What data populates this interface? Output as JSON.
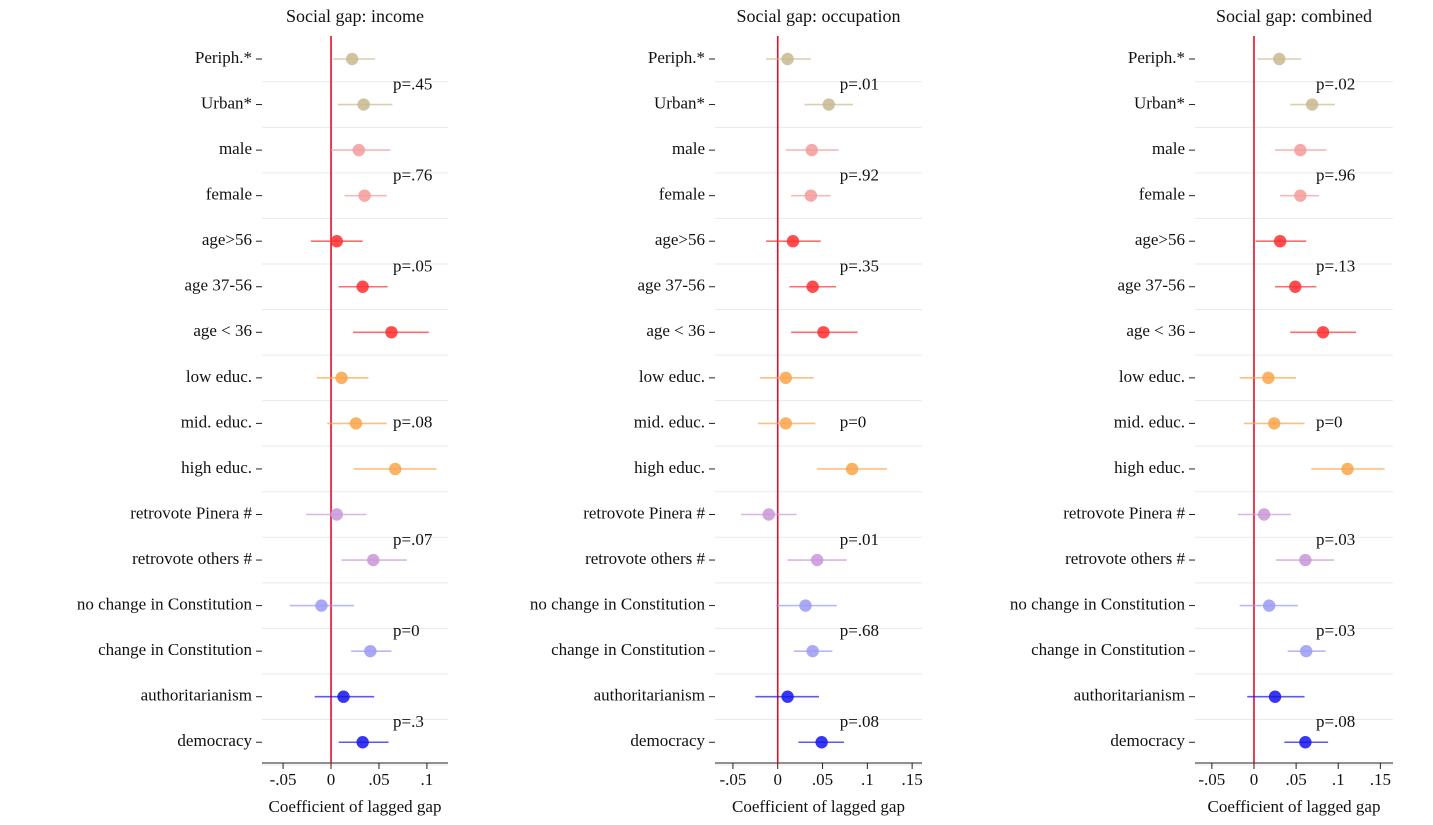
{
  "chart_data": [
    {
      "type": "errorbar",
      "title": "Social gap: income",
      "xlabel": "Coefficient of lagged gap",
      "categories": [
        "Periph.*",
        "Urban*",
        "male",
        "female",
        "age>56",
        "age 37-56",
        "age < 36",
        "low educ.",
        "mid. educ.",
        "high educ.",
        "retrovote Pinera #",
        "retrovote others #",
        "no change in Constitution",
        "change in Constitution",
        "authoritarianism",
        "democracy"
      ],
      "values": [
        0.022,
        0.034,
        0.029,
        0.035,
        0.006,
        0.033,
        0.063,
        0.011,
        0.026,
        0.067,
        0.006,
        0.044,
        -0.01,
        0.041,
        0.013,
        0.033
      ],
      "lower": [
        0.002,
        0.007,
        0.0,
        0.014,
        -0.021,
        0.008,
        0.023,
        -0.015,
        -0.004,
        0.024,
        -0.026,
        0.011,
        -0.043,
        0.021,
        -0.017,
        0.008
      ],
      "upper": [
        0.046,
        0.064,
        0.062,
        0.058,
        0.033,
        0.059,
        0.102,
        0.039,
        0.058,
        0.11,
        0.037,
        0.079,
        0.024,
        0.063,
        0.045,
        0.06
      ],
      "colors": [
        "#c8b98f",
        "#c8b98f",
        "#f49a9a",
        "#f49a9a",
        "#ff2e2e",
        "#ff2e2e",
        "#ff2e2e",
        "#f9a44a",
        "#f9a44a",
        "#f9a44a",
        "#c996d8",
        "#c996d8",
        "#9a9af4",
        "#9a9af4",
        "#1414ee",
        "#1414ee"
      ],
      "annotations": [
        null,
        "p=.45",
        null,
        "p=.76",
        null,
        "p=.05",
        null,
        null,
        "p=.08",
        null,
        null,
        "p=.07",
        null,
        "p=0",
        null,
        "p=.3"
      ],
      "xlim": [
        -0.072,
        0.122
      ],
      "xticks": [
        {
          "value": -0.05,
          "label": "-.05"
        },
        0,
        {
          "value": 0.05,
          "label": ".05"
        },
        {
          "value": 0.1,
          "label": ".1"
        }
      ],
      "refline": 0,
      "grid": true
    },
    {
      "type": "errorbar",
      "title": "Social gap: occupation",
      "xlabel": "Coefficient of lagged gap",
      "categories": [
        "Periph.*",
        "Urban*",
        "male",
        "female",
        "age>56",
        "age 37-56",
        "age < 36",
        "low educ.",
        "mid. educ.",
        "high educ.",
        "retrovote Pinera #",
        "retrovote others #",
        "no change in Constitution",
        "change in Constitution",
        "authoritarianism",
        "democracy"
      ],
      "values": [
        0.011,
        0.057,
        0.038,
        0.037,
        0.017,
        0.039,
        0.051,
        0.009,
        0.009,
        0.083,
        -0.01,
        0.044,
        0.031,
        0.039,
        0.011,
        0.049
      ],
      "lower": [
        -0.013,
        0.03,
        0.009,
        0.015,
        -0.013,
        0.013,
        0.015,
        -0.02,
        -0.022,
        0.044,
        -0.041,
        0.011,
        -0.002,
        0.018,
        -0.025,
        0.023
      ],
      "upper": [
        0.037,
        0.084,
        0.068,
        0.059,
        0.048,
        0.065,
        0.089,
        0.04,
        0.042,
        0.122,
        0.021,
        0.077,
        0.066,
        0.061,
        0.046,
        0.074
      ],
      "colors": [
        "#c8b98f",
        "#c8b98f",
        "#f49a9a",
        "#f49a9a",
        "#ff2e2e",
        "#ff2e2e",
        "#ff2e2e",
        "#f9a44a",
        "#f9a44a",
        "#f9a44a",
        "#c996d8",
        "#c996d8",
        "#9a9af4",
        "#9a9af4",
        "#1414ee",
        "#1414ee"
      ],
      "annotations": [
        null,
        "p=.01",
        null,
        "p=.92",
        null,
        "p=.35",
        null,
        null,
        "p=0",
        null,
        null,
        "p=.01",
        null,
        "p=.68",
        null,
        "p=.08"
      ],
      "xlim": [
        -0.07,
        0.161
      ],
      "xticks": [
        {
          "value": -0.05,
          "label": "-.05"
        },
        0,
        {
          "value": 0.05,
          "label": ".05"
        },
        {
          "value": 0.1,
          "label": ".1"
        },
        {
          "value": 0.15,
          "label": ".15"
        }
      ],
      "refline": 0,
      "grid": true
    },
    {
      "type": "errorbar",
      "title": "Social gap: combined",
      "xlabel": "Coefficient of lagged gap",
      "categories": [
        "Periph.*",
        "Urban*",
        "male",
        "female",
        "age>56",
        "age 37-56",
        "age < 36",
        "low educ.",
        "mid. educ.",
        "high educ.",
        "retrovote Pinera #",
        "retrovote others #",
        "no change in Constitution",
        "change in Constitution",
        "authoritarianism",
        "democracy"
      ],
      "values": [
        0.03,
        0.069,
        0.055,
        0.055,
        0.031,
        0.049,
        0.082,
        0.017,
        0.024,
        0.111,
        0.012,
        0.061,
        0.018,
        0.062,
        0.025,
        0.061
      ],
      "lower": [
        0.004,
        0.043,
        0.025,
        0.031,
        0.002,
        0.025,
        0.043,
        -0.017,
        -0.012,
        0.068,
        -0.019,
        0.026,
        -0.017,
        0.04,
        -0.008,
        0.036
      ],
      "upper": [
        0.056,
        0.096,
        0.086,
        0.077,
        0.062,
        0.074,
        0.121,
        0.05,
        0.06,
        0.155,
        0.044,
        0.095,
        0.052,
        0.085,
        0.06,
        0.088
      ],
      "colors": [
        "#c8b98f",
        "#c8b98f",
        "#f49a9a",
        "#f49a9a",
        "#ff2e2e",
        "#ff2e2e",
        "#ff2e2e",
        "#f9a44a",
        "#f9a44a",
        "#f9a44a",
        "#c996d8",
        "#c996d8",
        "#9a9af4",
        "#9a9af4",
        "#1414ee",
        "#1414ee"
      ],
      "annotations": [
        null,
        "p=.02",
        null,
        "p=.96",
        null,
        "p=.13",
        null,
        null,
        "p=0",
        null,
        null,
        "p=.03",
        null,
        "p=.03",
        null,
        "p=.08"
      ],
      "xlim": [
        -0.07,
        0.165
      ],
      "xticks": [
        {
          "value": -0.05,
          "label": "-.05"
        },
        0,
        {
          "value": 0.05,
          "label": ".05"
        },
        {
          "value": 0.1,
          "label": ".1"
        },
        {
          "value": 0.15,
          "label": ".15"
        }
      ],
      "refline": 0,
      "grid": true
    }
  ]
}
